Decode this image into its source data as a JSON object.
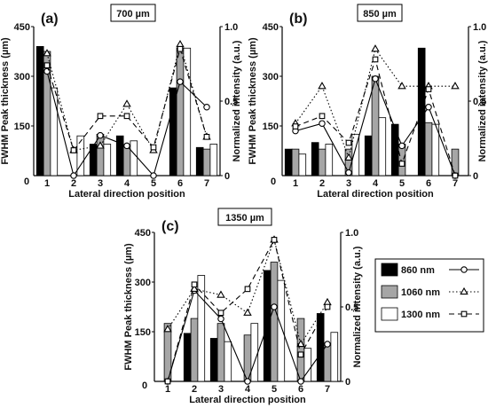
{
  "chart_data": [
    {
      "panel_label": "(a)",
      "title": "700 µm",
      "type": "bar",
      "xlabel": "Lateral direction position",
      "ylabel": "FWHM Peak thickness (µm)",
      "y2label": "Normalized intensity (a.u.)",
      "categories": [
        "1",
        "2",
        "3",
        "4",
        "5",
        "6",
        "7"
      ],
      "x_origin_label": "0",
      "ylim": [
        0,
        450
      ],
      "yticks": [
        "150",
        "300",
        "450"
      ],
      "y2lim": [
        0,
        1
      ],
      "y2ticks": [
        "0",
        "0.5",
        "1.0"
      ],
      "series": [
        {
          "name": "860 nm",
          "values": [
            390,
            0,
            95,
            120,
            0,
            265,
            85
          ]
        },
        {
          "name": "1060 nm",
          "values": [
            375,
            0,
            125,
            90,
            0,
            385,
            80
          ]
        },
        {
          "name": "1300 nm",
          "values": [
            265,
            120,
            95,
            105,
            0,
            385,
            95
          ]
        }
      ],
      "line_series": [
        {
          "name": "860 nm",
          "values": [
            0.7,
            0,
            0.27,
            0.2,
            0,
            0.63,
            0.46
          ]
        },
        {
          "name": "1060 nm",
          "values": [
            0.82,
            0.17,
            0.2,
            0.48,
            0.17,
            0.88,
            0.26
          ]
        },
        {
          "name": "1300 nm",
          "values": [
            0.74,
            0.17,
            0.4,
            0.4,
            0.19,
            0.85,
            0.26
          ]
        }
      ]
    },
    {
      "panel_label": "(b)",
      "title": "850 µm",
      "type": "bar",
      "xlabel": "Lateral direction position",
      "ylabel": "FWHM Peak thickness (µm)",
      "y2label": "Normalized intensity (a.u.)",
      "categories": [
        "1",
        "2",
        "3",
        "4",
        "5",
        "6",
        "7"
      ],
      "x_origin_label": "0",
      "ylim": [
        0,
        450
      ],
      "yticks": [
        "150",
        "300",
        "450"
      ],
      "y2lim": [
        0,
        1
      ],
      "y2ticks": [
        "0",
        "0.5",
        "1.0"
      ],
      "series": [
        {
          "name": "860 nm",
          "values": [
            80,
            100,
            0,
            120,
            155,
            385,
            0
          ]
        },
        {
          "name": "1060 nm",
          "values": [
            80,
            80,
            80,
            300,
            95,
            160,
            80
          ]
        },
        {
          "name": "1300 nm",
          "values": [
            65,
            95,
            125,
            175,
            0,
            155,
            0
          ]
        }
      ],
      "line_series": [
        {
          "name": "860 nm",
          "values": [
            0.3,
            0.35,
            0.02,
            0.65,
            0.2,
            0.46,
            0
          ]
        },
        {
          "name": "1060 nm",
          "values": [
            0.35,
            0.6,
            0.12,
            0.85,
            0.6,
            0.6,
            0.6
          ]
        },
        {
          "name": "1300 nm",
          "values": [
            0.33,
            0.4,
            0.22,
            0.78,
            0.08,
            0.58,
            0
          ]
        }
      ]
    },
    {
      "panel_label": "(c)",
      "title": "1350 µm",
      "type": "bar",
      "xlabel": "Lateral direction position",
      "ylabel": "FWHM Peak thickness (µm)",
      "y2label": "Normalized intensity (a.u.)",
      "categories": [
        "1",
        "2",
        "3",
        "4",
        "5",
        "6",
        "7"
      ],
      "x_origin_label": "0",
      "ylim": [
        0,
        450
      ],
      "yticks": [
        "150",
        "300",
        "450"
      ],
      "y2lim": [
        0,
        1
      ],
      "y2ticks": [
        "0",
        "0.5",
        "1.0"
      ],
      "series": [
        {
          "name": "860 nm",
          "values": [
            0,
            145,
            130,
            0,
            335,
            0,
            205
          ]
        },
        {
          "name": "1060 nm",
          "values": [
            175,
            190,
            175,
            140,
            360,
            190,
            110
          ]
        },
        {
          "name": "1300 nm",
          "values": [
            0,
            320,
            120,
            175,
            305,
            100,
            148
          ]
        }
      ],
      "line_series": [
        {
          "name": "860 nm",
          "values": [
            0,
            0.61,
            0.42,
            0,
            0.5,
            0,
            0.25
          ]
        },
        {
          "name": "1060 nm",
          "values": [
            0.35,
            0.62,
            0.58,
            0.46,
            0.95,
            0.25,
            0.53
          ]
        },
        {
          "name": "1300 nm",
          "values": [
            0,
            0.65,
            0.46,
            0.62,
            0.95,
            0.18,
            0.5
          ]
        }
      ]
    }
  ],
  "legend": {
    "items": [
      {
        "label": "860 nm",
        "color": "#000000",
        "marker": "circle",
        "dash": "solid"
      },
      {
        "label": "1060 nm",
        "color": "#a6a6a6",
        "marker": "triangle",
        "dash": "dotted"
      },
      {
        "label": "1300 nm",
        "color": "#ffffff",
        "marker": "square",
        "dash": "dashed"
      }
    ]
  }
}
